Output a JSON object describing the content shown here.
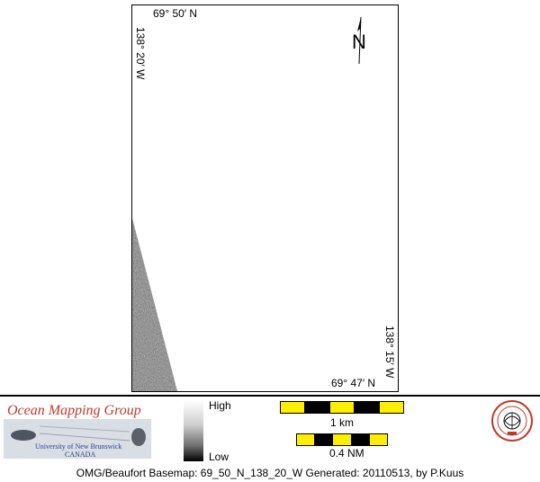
{
  "map": {
    "lat_top": "69° 50′ N",
    "lat_bottom": "69° 47′ N",
    "lon_left": "138° 20′ W",
    "lon_right": "138° 15′ W",
    "north_label": "N"
  },
  "legend": {
    "high": "High",
    "low": "Low"
  },
  "scalebars": {
    "km": "1 km",
    "nm": "0.4 NM"
  },
  "logo": {
    "title": "Ocean Mapping Group",
    "university": "University of New Brunswick",
    "country": "CANADA"
  },
  "footer": "OMG/Beaufort Basemap: 69_50_N_138_20_W    Generated: 20110513, by P.Kuus"
}
